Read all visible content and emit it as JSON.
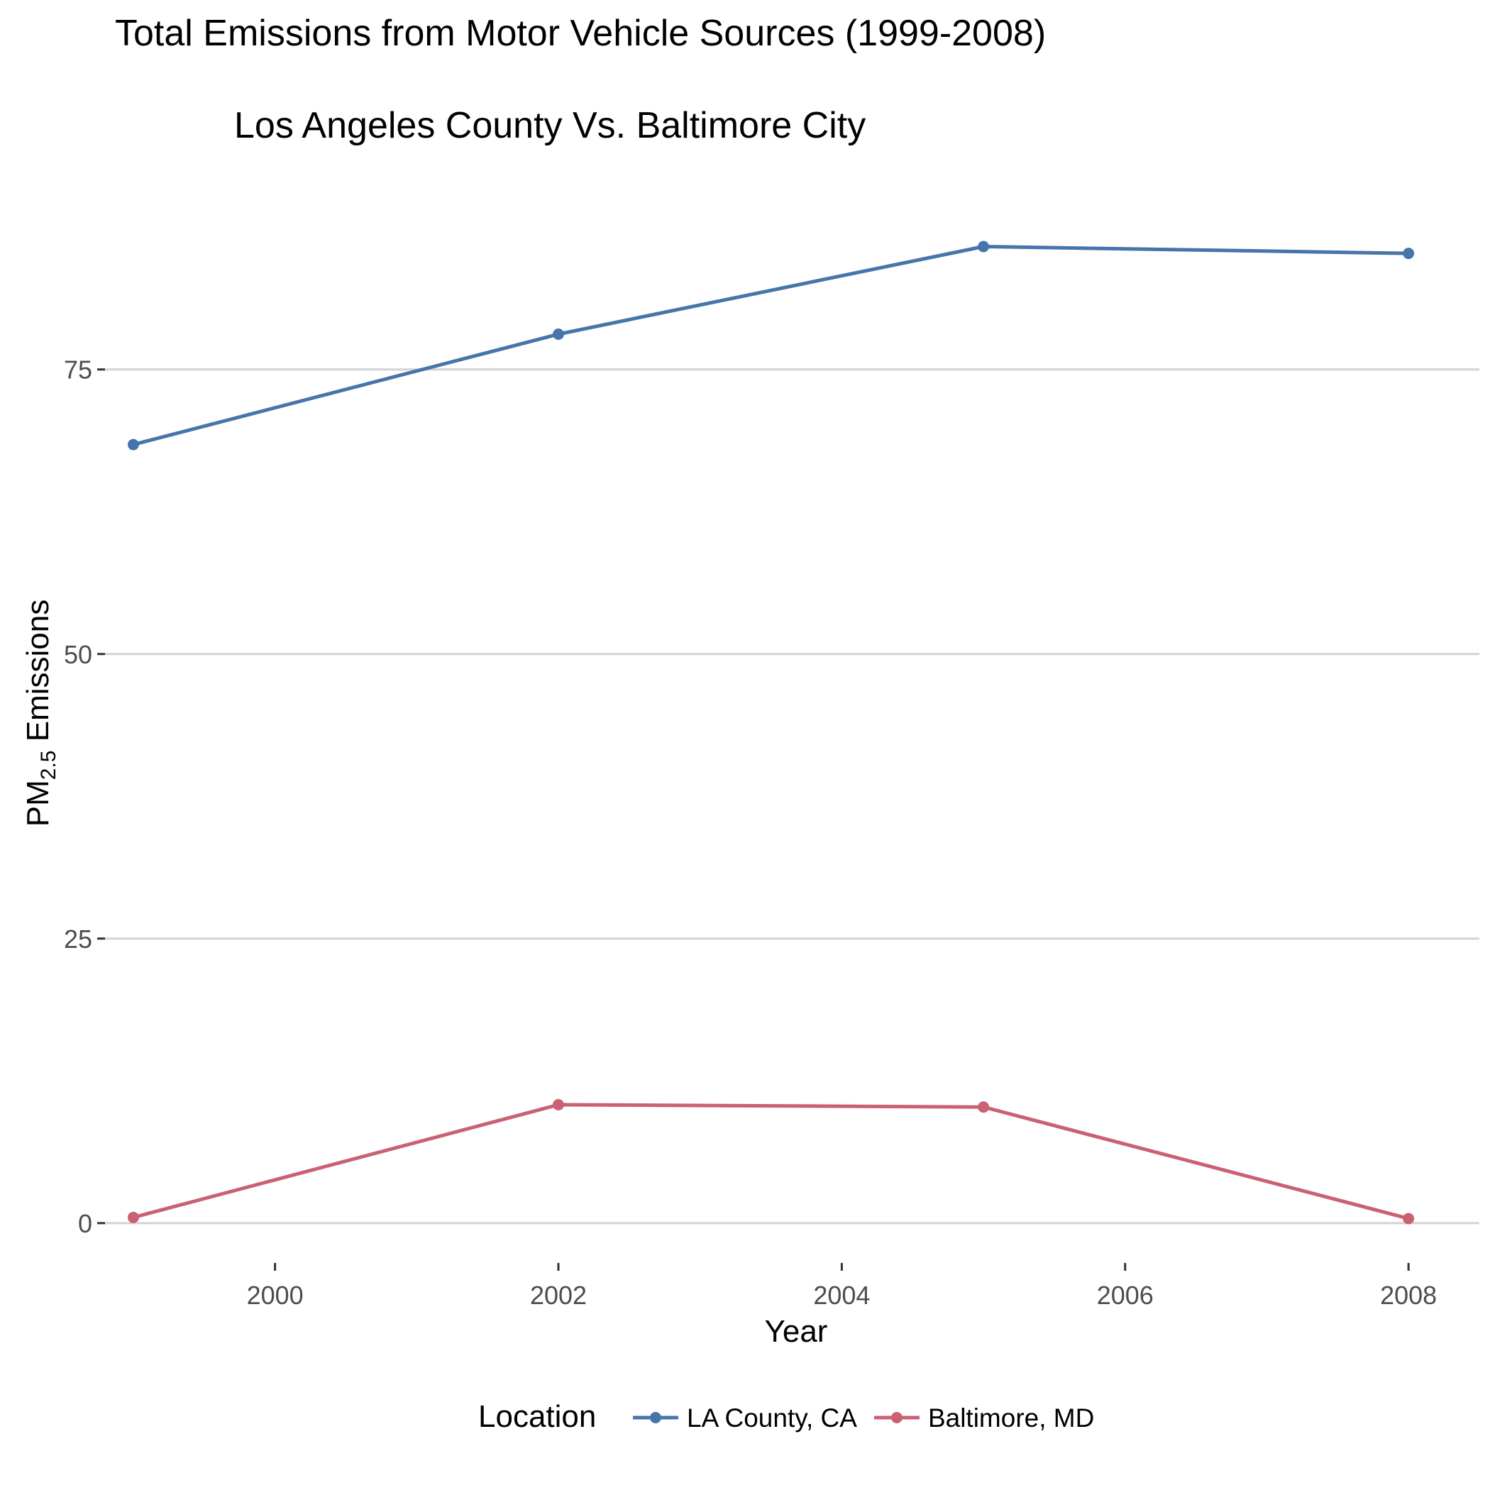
{
  "chart_data": {
    "type": "line",
    "title": "Total Emissions from Motor Vehicle Sources (1999-2008)",
    "subtitle": "Los Angeles County Vs. Baltimore City",
    "xlabel": "Year",
    "ylabel": {
      "main": "PM",
      "subscript": "2.5",
      "rest": " Emissions"
    },
    "x": [
      1999,
      2002,
      2005,
      2008
    ],
    "xlim": [
      1998.8,
      2008.5
    ],
    "ylim": [
      -3.5,
      92.5
    ],
    "x_ticks": [
      2000,
      2002,
      2004,
      2006,
      2008
    ],
    "y_ticks": [
      0,
      25,
      50,
      75
    ],
    "grid": {
      "horizontal": true,
      "vertical": false
    },
    "series": [
      {
        "name": "LA County, CA",
        "color": "#4575ab",
        "values": [
          68.4,
          78.1,
          85.8,
          85.2
        ]
      },
      {
        "name": "Baltimore, MD",
        "color": "#c96173",
        "values": [
          0.5,
          10.4,
          10.2,
          0.4
        ]
      }
    ],
    "legend": {
      "title": "Location",
      "position": "bottom"
    }
  }
}
